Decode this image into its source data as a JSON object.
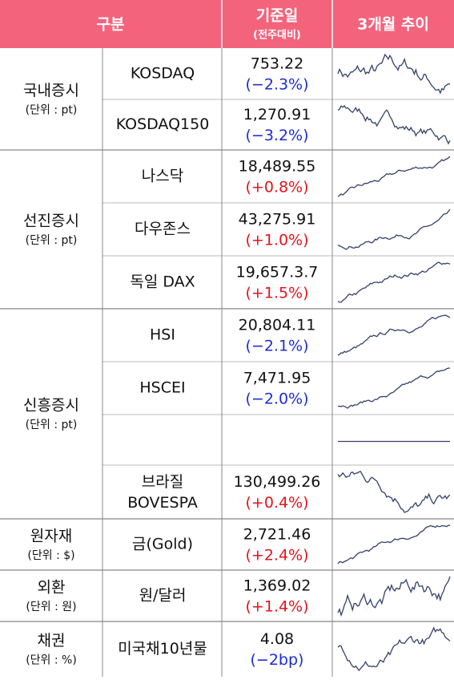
{
  "header": {
    "category": "구분",
    "base_date": "기준일",
    "base_date_sub": "(전주대비)",
    "trend": "3개월 추이"
  },
  "groups": [
    {
      "label": "국내증시",
      "unit": "(단위 : pt)",
      "rows": [
        {
          "name": "KOSDAQ",
          "value": "753.22",
          "change": "(−2.3%)",
          "color": "#1d2bd6"
        },
        {
          "name": "KOSDAQ150",
          "value": "1,270.91",
          "change": "(−3.2%)",
          "color": "#1d2bd6"
        }
      ]
    },
    {
      "label": "선진증시",
      "unit": "(단위 : pt)",
      "rows": [
        {
          "name": "나스닥",
          "value": "18,489.55",
          "change": "(+0.8%)",
          "color": "#e3141d"
        },
        {
          "name": "다우존스",
          "value": "43,275.91",
          "change": "(+1.0%)",
          "color": "#e3141d"
        },
        {
          "name": "독일 DAX",
          "value": "19,657.3.7",
          "change": "(+1.5%)",
          "color": "#e3141d"
        }
      ]
    },
    {
      "label": "신흥증시",
      "unit": "(단위 : pt)",
      "rows": [
        {
          "name": "HSI",
          "value": "20,804.11",
          "change": "(−2.1%)",
          "color": "#1d2bd6"
        },
        {
          "name": "HSCEI",
          "value": "7,471.95",
          "change": "(−2.0%)",
          "color": "#1d2bd6"
        },
        {
          "name": null,
          "value": null,
          "change": null,
          "color": null
        },
        {
          "name": "브라질",
          "name2": "BOVESPA",
          "value": "130,499.26",
          "change": "(+0.4%)",
          "color": "#e3141d"
        }
      ]
    },
    {
      "label": "원자재",
      "unit": "(단위 : $)",
      "rows": [
        {
          "name": "금(Gold)",
          "value": "2,721.46",
          "change": "(+2.4%)",
          "color": "#e3141d"
        }
      ]
    },
    {
      "label": "외환",
      "unit": "(단위 : 원)",
      "rows": [
        {
          "name": "원/달러",
          "value": "1,369.02",
          "change": "(+1.4%)",
          "color": "#e3141d"
        }
      ]
    },
    {
      "label": "채권",
      "unit": "(단위 : %)",
      "rows": [
        {
          "name": "미국채10년물",
          "value": "4.08",
          "change": "(−2bp)",
          "color": "#1d2bd6"
        }
      ]
    }
  ]
}
